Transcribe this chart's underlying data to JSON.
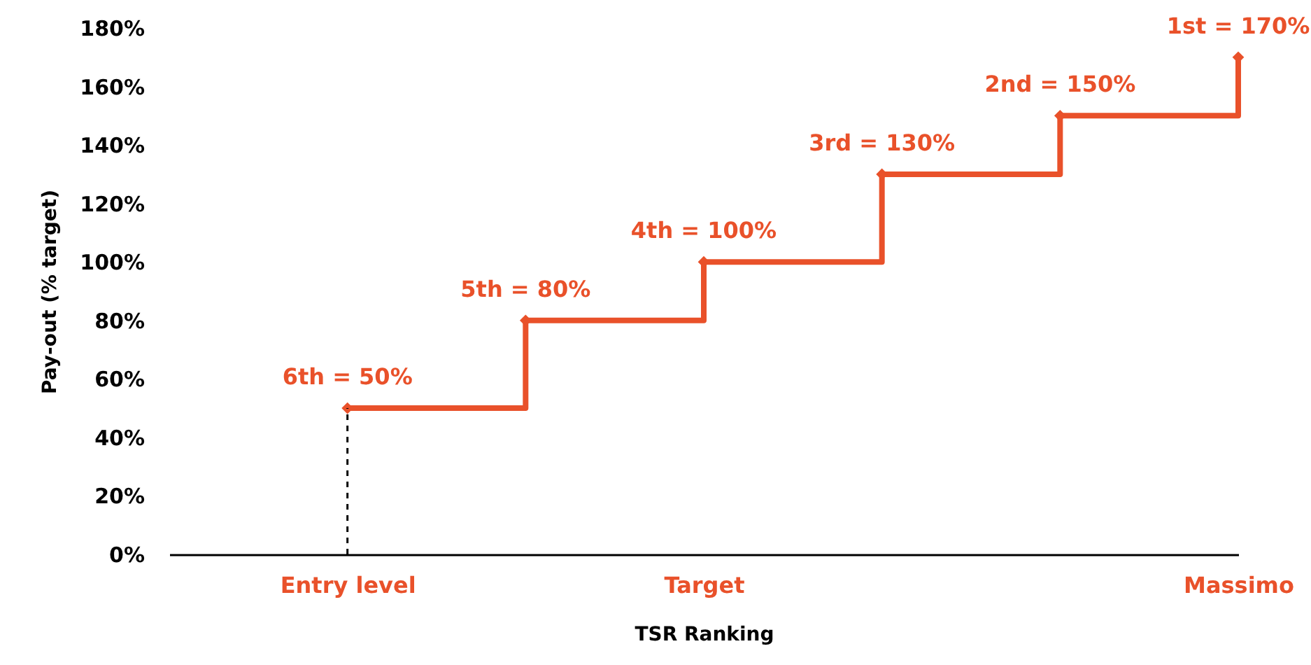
{
  "chart_data": {
    "type": "step",
    "xlabel": "TSR Ranking",
    "ylabel": "Pay-out (% target)",
    "categories": [
      null,
      "Entry level",
      null,
      "Target",
      null,
      null,
      "Massimo"
    ],
    "ylim": [
      0,
      180
    ],
    "yticks": [
      {
        "value": 0,
        "label": "0%"
      },
      {
        "value": 20,
        "label": "20%"
      },
      {
        "value": 40,
        "label": "40%"
      },
      {
        "value": 60,
        "label": "60%"
      },
      {
        "value": 80,
        "label": "80%"
      },
      {
        "value": 100,
        "label": "100%"
      },
      {
        "value": 120,
        "label": "120%"
      },
      {
        "value": 140,
        "label": "140%"
      },
      {
        "value": 160,
        "label": "160%"
      },
      {
        "value": 180,
        "label": "180%"
      }
    ],
    "marker": "diamond",
    "line_style": "solid",
    "series": [
      {
        "color": "#e9512a",
        "values": [
          null,
          50,
          80,
          100,
          130,
          150,
          170
        ],
        "value_labels": [
          null,
          "6th = 50%",
          "5th = 80%",
          "4th = 100%",
          "3rd = 130%",
          "2nd = 150%",
          "1st = 170%"
        ]
      },
      {
        "type": "line",
        "color": "#000000",
        "x": [
          "Entry level",
          "Entry level"
        ],
        "values": [
          0,
          50
        ],
        "marker": "none",
        "line_style": "dashed"
      }
    ]
  }
}
